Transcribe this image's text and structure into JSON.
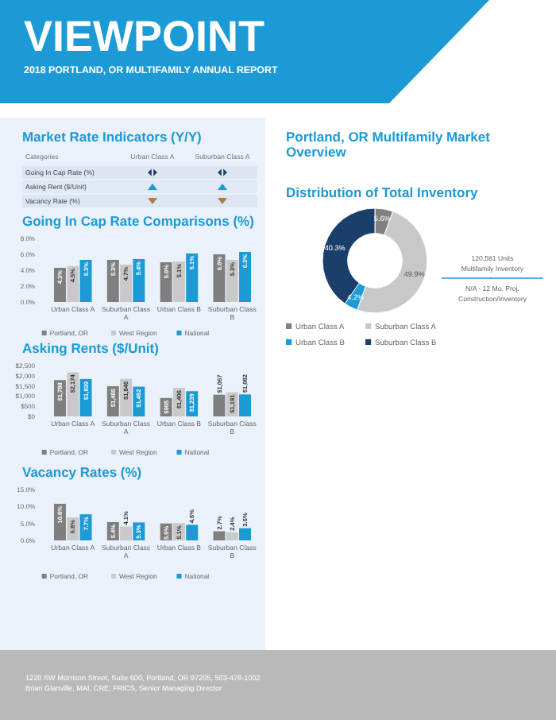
{
  "chart_data": [
    {
      "type": "other",
      "title": "VIEWPOINT",
      "subtitle": "2018 PORTLAND, OR MULTIFAMILY ANNUAL REPORT"
    },
    {
      "type": "other",
      "title": "Market Rate Indicators (Y/Y)",
      "annotations": [
        "Categories"
      ],
      "categories": [
        "Urban Class A",
        "Suburban Class A"
      ],
      "y_categories": [
        "Going In Cap Rate (%)",
        "Asking Rent ($/Unit)",
        "Vacancy Rate (%)"
      ]
    },
    {
      "type": "bar",
      "title": "Going In Cap Rate Comparisons (%)",
      "categories": [
        "Urban Class A",
        "Suburban Class A",
        "Urban Class B",
        "Suburban Class B"
      ],
      "ylim": [
        0,
        8
      ],
      "yticks": [
        {
          "value": 0,
          "label": "0.0%"
        },
        {
          "value": 2,
          "label": "2.0%"
        },
        {
          "value": 4,
          "label": "4.0%"
        },
        {
          "value": 6,
          "label": "6.0%"
        },
        {
          "value": 8,
          "label": "8.0%"
        }
      ],
      "legend": "bottom",
      "series": [
        {
          "name": "Portland, OR",
          "color": "#7f7f7f",
          "values": [
            4.3,
            5.3,
            5.0,
            6.0
          ],
          "value_labels": [
            "4.3%",
            "5.3%",
            "5.0%",
            "6.0%"
          ]
        },
        {
          "name": "West Region",
          "color": "#c9c9c9",
          "values": [
            4.5,
            4.7,
            5.1,
            5.3
          ],
          "value_labels": [
            "4.5%",
            "4.7%",
            "5.1%",
            "5.3%"
          ]
        },
        {
          "name": "National",
          "color": "#1b9ad6",
          "values": [
            5.3,
            5.4,
            6.1,
            6.3
          ],
          "value_labels": [
            "5.3%",
            "5.4%",
            "6.1%",
            "6.3%"
          ]
        }
      ]
    },
    {
      "type": "bar",
      "title": "Asking Rents ($/Unit)",
      "categories": [
        "Urban Class A",
        "Suburban Class A",
        "Urban Class B",
        "Suburban Class B"
      ],
      "ylim": [
        0,
        2500
      ],
      "yticks": [
        {
          "value": 0,
          "label": "$0"
        },
        {
          "value": 500,
          "label": "$500"
        },
        {
          "value": 1000,
          "label": "$1,000"
        },
        {
          "value": 1500,
          "label": "$1,500"
        },
        {
          "value": 2000,
          "label": "$2,000"
        },
        {
          "value": 2500,
          "label": "$2,500"
        }
      ],
      "legend": "bottom",
      "series": [
        {
          "name": "Portland, OR",
          "color": "#7f7f7f",
          "values": [
            1788,
            1485,
            905,
            1067
          ],
          "value_labels": [
            "$1,788",
            "$1,485",
            "$905",
            "$1,067"
          ]
        },
        {
          "name": "West Region",
          "color": "#c9c9c9",
          "values": [
            2174,
            1846,
            1406,
            1191
          ],
          "value_labels": [
            "$2,174",
            "$1,846",
            "$1,406",
            "$1,191"
          ]
        },
        {
          "name": "National",
          "color": "#1b9ad6",
          "values": [
            1839,
            1462,
            1239,
            1082
          ],
          "value_labels": [
            "$1,839",
            "$1,462",
            "$1,239",
            "$1,082"
          ]
        }
      ]
    },
    {
      "type": "bar",
      "title": "Vacancy Rates (%)",
      "categories": [
        "Urban Class A",
        "Suburban Class A",
        "Urban Class B",
        "Suburban Class B"
      ],
      "ylim": [
        0,
        15
      ],
      "yticks": [
        {
          "value": 0,
          "label": "0.0%"
        },
        {
          "value": 5,
          "label": "5.0%"
        },
        {
          "value": 10,
          "label": "10.0%"
        },
        {
          "value": 15,
          "label": "15.0%"
        }
      ],
      "legend": "bottom",
      "series": [
        {
          "name": "Portland, OR",
          "color": "#7f7f7f",
          "values": [
            10.8,
            5.4,
            5.0,
            2.7
          ],
          "value_labels": [
            "10.8%",
            "5.4%",
            "5.0%",
            "2.7%"
          ]
        },
        {
          "name": "West Region",
          "color": "#c9c9c9",
          "values": [
            6.8,
            4.1,
            5.1,
            2.4
          ],
          "value_labels": [
            "6.8%",
            "4.1%",
            "5.1%",
            "2.4%"
          ]
        },
        {
          "name": "National",
          "color": "#1b9ad6",
          "values": [
            7.7,
            5.3,
            4.6,
            3.6
          ],
          "value_labels": [
            "7.7%",
            "5.3%",
            "4.6%",
            "3.6%"
          ]
        }
      ]
    },
    {
      "type": "other",
      "title": "Portland, OR Multifamily Market Overview"
    },
    {
      "type": "donut",
      "title": "Distribution of Total Inventory",
      "categories": [
        "Urban Class A",
        "Suburban Class A",
        "Urban Class B",
        "Suburban Class B"
      ],
      "values": [
        5.6,
        49.9,
        4.2,
        40.3
      ],
      "value_labels": [
        "5.6%",
        "49.9%",
        "4.2%",
        "40.3%"
      ],
      "colors": [
        "#808080",
        "#c8c8c8",
        "#1b9ad6",
        "#1b3f6b"
      ],
      "legend": "bottom",
      "annotations": [
        "120,581 Units",
        "Multifamily Inventory",
        "N/A - 12 Mo. Proj.",
        "Construction/Inventory"
      ]
    },
    {
      "type": "other",
      "annotations": [
        "1220 SW Morrison Street, Suite 600, Portland, OR 97205, 503-478-1002",
        "Brian Glanville, MAI, CRE, FRICS, Senior Managing Director"
      ]
    }
  ]
}
